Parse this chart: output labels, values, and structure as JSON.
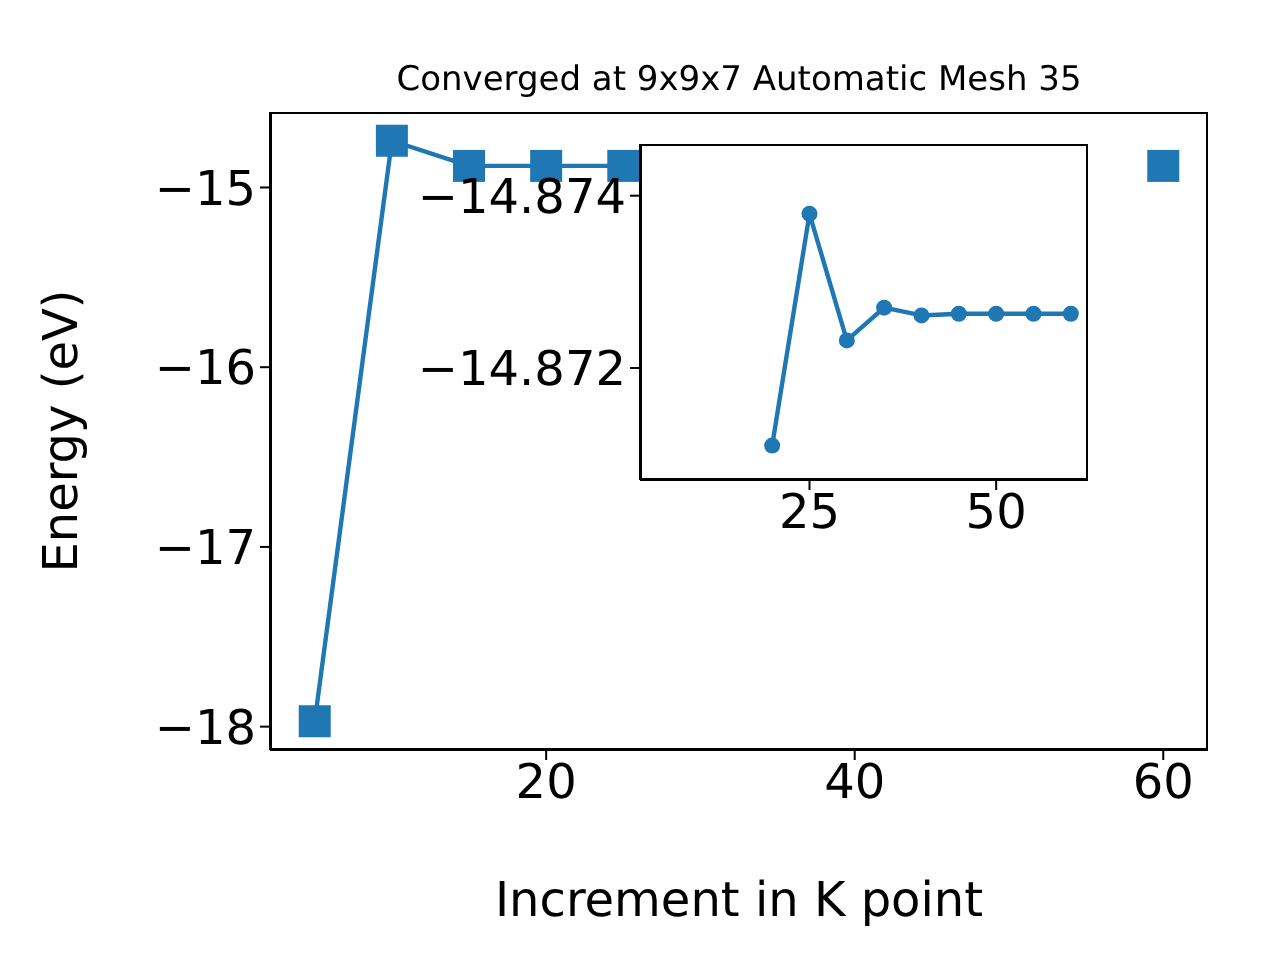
{
  "chart_data": [
    {
      "type": "line",
      "title": "Converged at 9x9x7 Automatic Mesh 35",
      "xlabel": "Increment in K point",
      "ylabel": "Energy (eV)",
      "marker": "square",
      "line_style": "solid",
      "x": [
        5,
        10,
        15,
        20,
        25,
        30,
        35,
        40,
        45,
        50,
        55,
        60
      ],
      "series": [
        {
          "color": "#1f77b4",
          "values": [
            -17.97,
            -14.74,
            -14.88,
            -14.88,
            -14.88,
            null,
            null,
            null,
            null,
            null,
            null,
            -14.88
          ]
        }
      ],
      "xlim": [
        2.1,
        62.9
      ],
      "xticks": [
        20,
        40,
        60
      ],
      "ylim": [
        -18.13,
        -14.58
      ],
      "yticks": [
        {
          "value": -18,
          "label": "−18"
        },
        {
          "value": -17,
          "label": "−17"
        },
        {
          "value": -16,
          "label": "−16"
        },
        {
          "value": -15,
          "label": "−15"
        }
      ]
    },
    {
      "type": "line",
      "marker": "circle",
      "line_style": "solid",
      "x": [
        20,
        25,
        30,
        35,
        40,
        45,
        50,
        55,
        60
      ],
      "series": [
        {
          "color": "#1f77b4",
          "values": [
            -14.8711,
            -14.87379,
            -14.87232,
            -14.8727,
            -14.87261,
            -14.87263,
            -14.87263,
            -14.87263,
            -14.87263
          ]
        }
      ],
      "xlim": [
        2.3,
        62.3
      ],
      "xticks": [
        25,
        50
      ],
      "ylim": [
        -14.8707,
        -14.8746
      ],
      "yticks": [
        {
          "value": -14.874,
          "label": "−14.874"
        },
        {
          "value": -14.872,
          "label": "−14.872"
        }
      ]
    }
  ]
}
